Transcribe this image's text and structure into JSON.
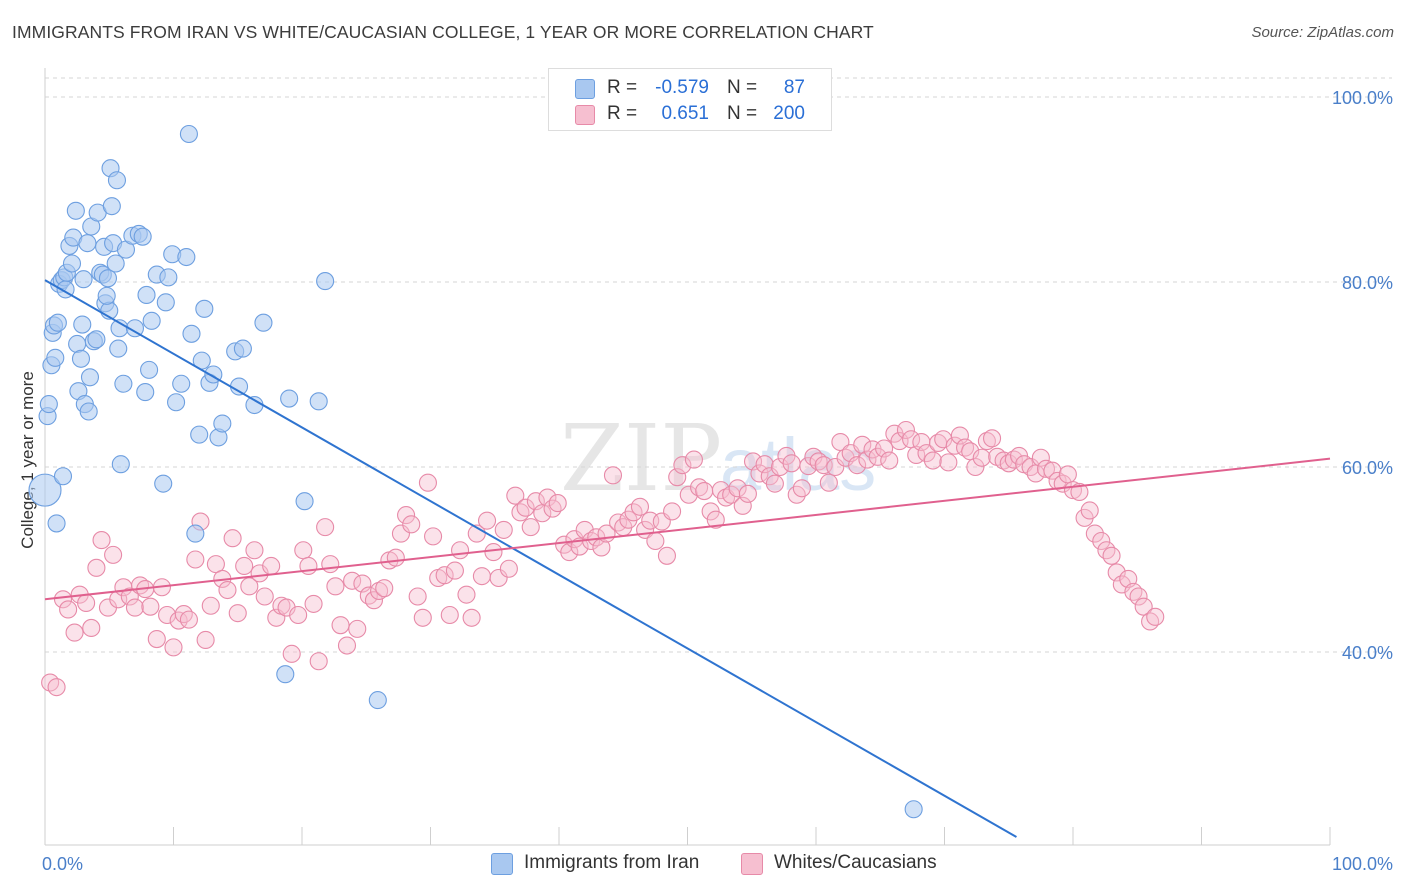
{
  "header": {
    "title": "IMMIGRANTS FROM IRAN VS WHITE/CAUCASIAN COLLEGE, 1 YEAR OR MORE CORRELATION CHART",
    "source": "Source: ZipAtlas.com"
  },
  "watermark": "ZIPatlas",
  "legend_top": {
    "rows": [
      {
        "r_label": "R =",
        "r_value": "-0.579",
        "n_label": "N =",
        "n_value": "87"
      },
      {
        "r_label": "R =",
        "r_value": "0.651",
        "n_label": "N =",
        "n_value": "200"
      }
    ]
  },
  "legend_bottom": {
    "items": [
      "Immigrants from Iran",
      "Whites/Caucasians"
    ]
  },
  "colors": {
    "blue_fill": "#a9c8f0",
    "blue_stroke": "#6d9fe0",
    "blue_line": "#2f74d0",
    "pink_fill": "#f6bfd0",
    "pink_stroke": "#e78aa8",
    "pink_line": "#e0608e",
    "tick_label": "#4a7fc9",
    "grid": "#d6d6d6"
  },
  "chart_data": {
    "type": "scatter",
    "title": "IMMIGRANTS FROM IRAN VS WHITE/CAUCASIAN COLLEGE, 1 YEAR OR MORE CORRELATION CHART",
    "xlabel": "",
    "ylabel": "College, 1 year or more",
    "xlim": [
      0,
      100
    ],
    "ylim": [
      20,
      102
    ],
    "x_tick_labels": [
      "0.0%",
      "100.0%"
    ],
    "y_ticks": [
      40,
      60,
      80,
      100
    ],
    "y_tick_labels": [
      "40.0%",
      "60.0%",
      "80.0%",
      "100.0%"
    ],
    "grid": "horizontal dashed",
    "legend": "bottom-center",
    "series": [
      {
        "name": "Immigrants from Iran",
        "R": -0.579,
        "N": 87,
        "trend": [
          [
            0,
            80.2
          ],
          [
            75.6,
            20.0
          ]
        ],
        "points": [
          [
            0.0,
            57.5
          ],
          [
            0.2,
            65.5
          ],
          [
            0.3,
            66.8
          ],
          [
            0.5,
            71.0
          ],
          [
            0.6,
            74.5
          ],
          [
            0.7,
            75.3
          ],
          [
            0.8,
            71.8
          ],
          [
            1.0,
            75.6
          ],
          [
            1.1,
            79.8
          ],
          [
            1.3,
            80.2
          ],
          [
            1.5,
            80.5
          ],
          [
            1.6,
            79.2
          ],
          [
            1.7,
            81.0
          ],
          [
            1.9,
            83.9
          ],
          [
            2.1,
            82.0
          ],
          [
            2.2,
            84.8
          ],
          [
            2.4,
            87.7
          ],
          [
            2.5,
            73.3
          ],
          [
            2.6,
            68.2
          ],
          [
            2.8,
            71.7
          ],
          [
            3.0,
            80.3
          ],
          [
            3.1,
            66.8
          ],
          [
            3.3,
            84.2
          ],
          [
            3.5,
            69.7
          ],
          [
            3.6,
            86.0
          ],
          [
            3.8,
            73.6
          ],
          [
            4.0,
            73.8
          ],
          [
            4.1,
            87.5
          ],
          [
            4.3,
            81.0
          ],
          [
            4.5,
            80.8
          ],
          [
            4.6,
            83.8
          ],
          [
            4.7,
            77.7
          ],
          [
            4.9,
            80.4
          ],
          [
            5.0,
            76.9
          ],
          [
            5.1,
            92.3
          ],
          [
            5.2,
            88.2
          ],
          [
            5.3,
            84.2
          ],
          [
            5.5,
            82.0
          ],
          [
            5.6,
            91.0
          ],
          [
            5.7,
            72.8
          ],
          [
            5.8,
            75.0
          ],
          [
            5.9,
            60.3
          ],
          [
            6.3,
            83.5
          ],
          [
            6.8,
            85.0
          ],
          [
            7.0,
            75.0
          ],
          [
            7.3,
            85.2
          ],
          [
            7.6,
            84.9
          ],
          [
            7.8,
            68.1
          ],
          [
            7.9,
            78.6
          ],
          [
            8.3,
            75.8
          ],
          [
            8.7,
            80.8
          ],
          [
            9.2,
            58.2
          ],
          [
            9.6,
            80.5
          ],
          [
            9.9,
            83.0
          ],
          [
            10.2,
            67.0
          ],
          [
            10.6,
            69.0
          ],
          [
            11.0,
            82.7
          ],
          [
            11.2,
            96.0
          ],
          [
            11.4,
            74.4
          ],
          [
            11.7,
            52.8
          ],
          [
            12.0,
            63.5
          ],
          [
            12.4,
            77.1
          ],
          [
            12.8,
            69.1
          ],
          [
            13.1,
            70.0
          ],
          [
            13.5,
            63.2
          ],
          [
            13.8,
            64.7
          ],
          [
            14.8,
            72.5
          ],
          [
            15.1,
            68.7
          ],
          [
            15.4,
            72.8
          ],
          [
            16.3,
            66.7
          ],
          [
            17.0,
            75.6
          ],
          [
            18.7,
            37.6
          ],
          [
            19.0,
            67.4
          ],
          [
            20.2,
            56.3
          ],
          [
            21.3,
            67.1
          ],
          [
            21.8,
            80.1
          ],
          [
            25.9,
            34.8
          ],
          [
            67.6,
            23.0
          ],
          [
            0.9,
            53.9
          ],
          [
            1.4,
            59.0
          ],
          [
            2.9,
            75.4
          ],
          [
            3.4,
            66.0
          ],
          [
            4.8,
            78.5
          ],
          [
            6.1,
            69.0
          ],
          [
            8.1,
            70.5
          ],
          [
            9.4,
            77.8
          ],
          [
            12.2,
            71.5
          ]
        ]
      },
      {
        "name": "Whites/Caucasians",
        "R": 0.651,
        "N": 200,
        "trend": [
          [
            0,
            45.7
          ],
          [
            100,
            60.9
          ]
        ],
        "points": [
          [
            0.4,
            36.7
          ],
          [
            0.9,
            36.2
          ],
          [
            1.4,
            45.7
          ],
          [
            1.8,
            44.6
          ],
          [
            2.3,
            42.1
          ],
          [
            2.7,
            46.2
          ],
          [
            3.2,
            45.3
          ],
          [
            3.6,
            42.6
          ],
          [
            4.0,
            49.1
          ],
          [
            4.4,
            52.1
          ],
          [
            4.9,
            44.8
          ],
          [
            5.3,
            50.5
          ],
          [
            5.7,
            45.7
          ],
          [
            6.1,
            47.0
          ],
          [
            6.6,
            46.0
          ],
          [
            7.0,
            44.8
          ],
          [
            7.4,
            47.2
          ],
          [
            7.8,
            46.8
          ],
          [
            8.2,
            44.9
          ],
          [
            8.7,
            41.4
          ],
          [
            9.1,
            47.0
          ],
          [
            9.5,
            44.0
          ],
          [
            10.0,
            40.5
          ],
          [
            10.4,
            43.4
          ],
          [
            10.8,
            44.1
          ],
          [
            11.2,
            43.5
          ],
          [
            11.7,
            50.0
          ],
          [
            12.1,
            54.1
          ],
          [
            12.5,
            41.3
          ],
          [
            12.9,
            45.0
          ],
          [
            13.3,
            49.5
          ],
          [
            13.8,
            47.9
          ],
          [
            14.2,
            46.7
          ],
          [
            14.6,
            52.3
          ],
          [
            15.0,
            44.2
          ],
          [
            15.5,
            49.3
          ],
          [
            15.9,
            47.1
          ],
          [
            16.3,
            51.0
          ],
          [
            16.7,
            48.5
          ],
          [
            17.1,
            46.0
          ],
          [
            17.6,
            49.3
          ],
          [
            18.0,
            43.7
          ],
          [
            18.4,
            45.0
          ],
          [
            18.8,
            44.8
          ],
          [
            19.2,
            39.8
          ],
          [
            19.7,
            44.0
          ],
          [
            20.1,
            51.0
          ],
          [
            20.5,
            49.3
          ],
          [
            20.9,
            45.2
          ],
          [
            21.3,
            39.0
          ],
          [
            21.8,
            53.5
          ],
          [
            22.2,
            49.5
          ],
          [
            22.6,
            47.1
          ],
          [
            23.0,
            42.9
          ],
          [
            23.5,
            40.7
          ],
          [
            23.9,
            47.7
          ],
          [
            24.3,
            42.5
          ],
          [
            24.7,
            47.4
          ],
          [
            25.2,
            46.1
          ],
          [
            25.6,
            45.6
          ],
          [
            26.0,
            46.6
          ],
          [
            26.4,
            46.9
          ],
          [
            26.8,
            49.9
          ],
          [
            27.3,
            50.2
          ],
          [
            27.7,
            52.8
          ],
          [
            28.1,
            54.8
          ],
          [
            28.5,
            53.8
          ],
          [
            29.0,
            46.0
          ],
          [
            29.4,
            43.7
          ],
          [
            29.8,
            58.3
          ],
          [
            30.2,
            52.5
          ],
          [
            30.6,
            48.0
          ],
          [
            31.1,
            48.3
          ],
          [
            31.5,
            44.0
          ],
          [
            31.9,
            48.8
          ],
          [
            32.3,
            51.0
          ],
          [
            32.8,
            46.2
          ],
          [
            33.2,
            43.7
          ],
          [
            33.6,
            52.8
          ],
          [
            34.0,
            48.2
          ],
          [
            34.4,
            54.2
          ],
          [
            34.9,
            50.8
          ],
          [
            35.3,
            48.0
          ],
          [
            35.7,
            53.2
          ],
          [
            36.1,
            49.0
          ],
          [
            36.6,
            56.9
          ],
          [
            37.0,
            55.1
          ],
          [
            37.4,
            55.6
          ],
          [
            37.8,
            53.5
          ],
          [
            38.2,
            56.3
          ],
          [
            38.7,
            55.0
          ],
          [
            39.1,
            56.7
          ],
          [
            39.5,
            55.5
          ],
          [
            39.9,
            56.1
          ],
          [
            40.4,
            51.6
          ],
          [
            40.8,
            50.8
          ],
          [
            41.2,
            52.2
          ],
          [
            41.6,
            51.4
          ],
          [
            42.0,
            53.2
          ],
          [
            42.5,
            52.0
          ],
          [
            42.9,
            52.4
          ],
          [
            43.3,
            51.3
          ],
          [
            43.7,
            52.8
          ],
          [
            44.2,
            59.1
          ],
          [
            44.6,
            54.0
          ],
          [
            45.0,
            53.5
          ],
          [
            45.4,
            54.3
          ],
          [
            45.8,
            55.1
          ],
          [
            46.3,
            55.7
          ],
          [
            46.7,
            53.2
          ],
          [
            47.1,
            54.2
          ],
          [
            47.5,
            52.0
          ],
          [
            48.0,
            54.1
          ],
          [
            48.4,
            50.4
          ],
          [
            48.8,
            55.2
          ],
          [
            49.2,
            58.9
          ],
          [
            49.6,
            60.2
          ],
          [
            50.1,
            57.0
          ],
          [
            50.5,
            60.8
          ],
          [
            50.9,
            57.8
          ],
          [
            51.3,
            57.4
          ],
          [
            51.8,
            55.2
          ],
          [
            52.2,
            54.3
          ],
          [
            52.6,
            57.5
          ],
          [
            53.0,
            56.7
          ],
          [
            53.4,
            57.0
          ],
          [
            53.9,
            57.7
          ],
          [
            54.3,
            55.8
          ],
          [
            54.7,
            57.1
          ],
          [
            55.1,
            60.6
          ],
          [
            55.6,
            59.3
          ],
          [
            56.0,
            60.3
          ],
          [
            56.4,
            59.0
          ],
          [
            56.8,
            58.2
          ],
          [
            57.2,
            60.0
          ],
          [
            57.7,
            61.2
          ],
          [
            58.1,
            60.4
          ],
          [
            58.5,
            57.0
          ],
          [
            58.9,
            57.7
          ],
          [
            59.4,
            60.1
          ],
          [
            59.8,
            61.1
          ],
          [
            60.2,
            60.6
          ],
          [
            60.6,
            60.2
          ],
          [
            61.0,
            58.3
          ],
          [
            61.5,
            60.0
          ],
          [
            61.9,
            62.7
          ],
          [
            62.3,
            61.0
          ],
          [
            62.7,
            61.5
          ],
          [
            63.2,
            60.2
          ],
          [
            63.6,
            62.4
          ],
          [
            64.0,
            60.8
          ],
          [
            64.4,
            61.9
          ],
          [
            64.8,
            61.1
          ],
          [
            65.3,
            62.0
          ],
          [
            65.7,
            60.7
          ],
          [
            66.1,
            63.6
          ],
          [
            66.5,
            62.8
          ],
          [
            67.0,
            64.0
          ],
          [
            67.4,
            63.0
          ],
          [
            67.8,
            61.3
          ],
          [
            68.2,
            62.7
          ],
          [
            68.6,
            61.5
          ],
          [
            69.1,
            60.7
          ],
          [
            69.5,
            62.6
          ],
          [
            69.9,
            63.0
          ],
          [
            70.3,
            60.5
          ],
          [
            70.8,
            62.3
          ],
          [
            71.2,
            63.4
          ],
          [
            71.6,
            62.1
          ],
          [
            72.0,
            61.7
          ],
          [
            72.4,
            60.0
          ],
          [
            72.9,
            61.0
          ],
          [
            73.3,
            62.8
          ],
          [
            73.7,
            63.1
          ],
          [
            74.1,
            61.1
          ],
          [
            74.6,
            60.7
          ],
          [
            75.0,
            60.4
          ],
          [
            75.4,
            60.8
          ],
          [
            75.8,
            61.2
          ],
          [
            76.2,
            60.3
          ],
          [
            76.7,
            60.0
          ],
          [
            77.1,
            59.3
          ],
          [
            77.5,
            61.0
          ],
          [
            77.9,
            59.8
          ],
          [
            78.4,
            59.6
          ],
          [
            78.8,
            58.5
          ],
          [
            79.2,
            58.2
          ],
          [
            79.6,
            59.2
          ],
          [
            80.0,
            57.5
          ],
          [
            80.5,
            57.3
          ],
          [
            80.9,
            54.5
          ],
          [
            81.3,
            55.3
          ],
          [
            81.7,
            52.8
          ],
          [
            82.2,
            52.0
          ],
          [
            82.6,
            51.0
          ],
          [
            83.0,
            50.4
          ],
          [
            83.4,
            48.6
          ],
          [
            83.8,
            47.3
          ],
          [
            84.3,
            47.9
          ],
          [
            84.7,
            46.5
          ],
          [
            85.1,
            46.0
          ],
          [
            85.5,
            44.9
          ],
          [
            86.0,
            43.3
          ],
          [
            86.4,
            43.8
          ]
        ]
      }
    ]
  }
}
